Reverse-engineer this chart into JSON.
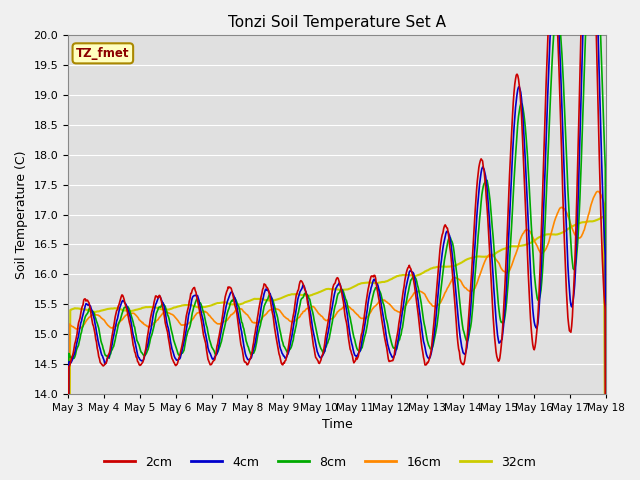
{
  "title": "Tonzi Soil Temperature Set A",
  "xlabel": "Time",
  "ylabel": "Soil Temperature (C)",
  "ylim": [
    14.0,
    20.0
  ],
  "yticks": [
    14.0,
    14.5,
    15.0,
    15.5,
    16.0,
    16.5,
    17.0,
    17.5,
    18.0,
    18.5,
    19.0,
    19.5,
    20.0
  ],
  "xtick_labels": [
    "May 3",
    "May 4",
    "May 5",
    "May 6",
    "May 7",
    "May 8",
    "May 9",
    "May 10",
    "May 11",
    "May 12",
    "May 13",
    "May 14",
    "May 15",
    "May 16",
    "May 17",
    "May 18"
  ],
  "colors": {
    "2cm": "#cc0000",
    "4cm": "#0000cc",
    "8cm": "#00aa00",
    "16cm": "#ff8800",
    "32cm": "#cccc00"
  },
  "legend_label": "TZ_fmet",
  "bg_color": "#e0e0e0",
  "fig_color": "#f0f0f0"
}
